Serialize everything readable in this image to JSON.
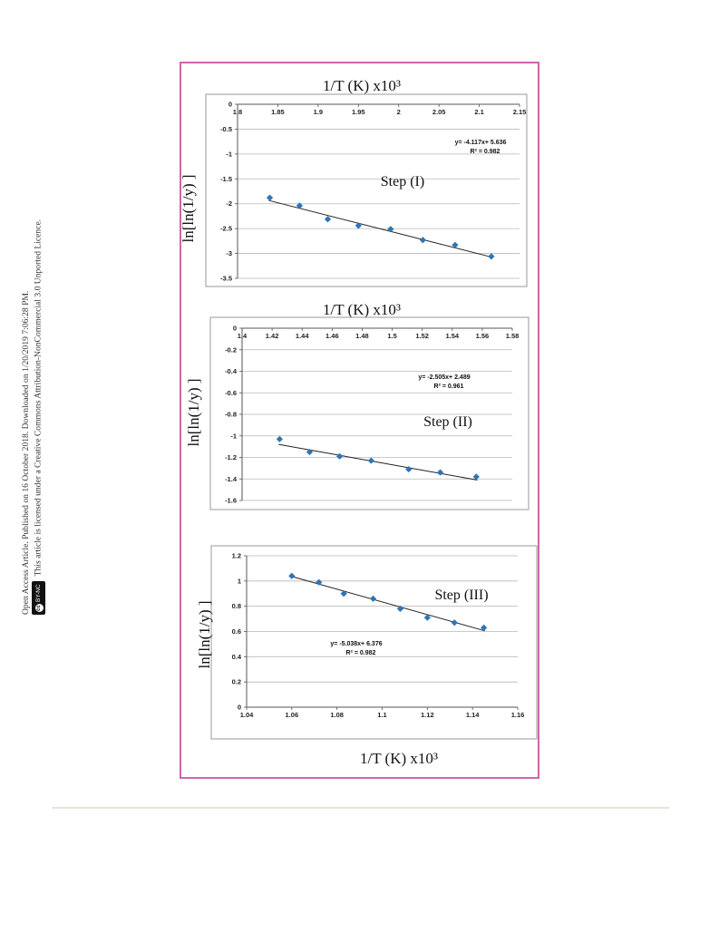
{
  "sidebar": {
    "line1": "Open Access Article. Published on 16 October 2018. Downloaded on 1/20/2019 7:06:28 PM.",
    "line2": "This article is licensed under a Creative Commons Attribution-NonCommercial 3.0 Unported Licence.",
    "badge": "BY-NC",
    "badge_cc": "cc"
  },
  "colors": {
    "frame": "#cc66aa",
    "marker": "#2e75b6",
    "trend": "#222222",
    "grid": "#b8b8b8"
  },
  "chart_data": [
    {
      "type": "scatter",
      "xlabel": "1/T (K) x10³",
      "ylabel": "ln[ln(1/y) ]",
      "annotation": "Step (I)",
      "equation": "y= -4.117x+ 5.636",
      "r2": "R² = 0.982",
      "xlim": [
        1.8,
        2.15
      ],
      "ylim": [
        -3.5,
        0
      ],
      "xticks": [
        "1.8",
        "1.85",
        "1.9",
        "1.95",
        "2",
        "2.05",
        "2.1",
        "2.15"
      ],
      "yticks": [
        "0",
        "-0.5",
        "-1",
        "-1.5",
        "-2",
        "-2.5",
        "-3",
        "-3.5"
      ],
      "x": [
        1.84,
        1.877,
        1.912,
        1.95,
        1.99,
        2.03,
        2.07,
        2.115
      ],
      "y": [
        -1.88,
        -2.04,
        -2.31,
        -2.44,
        -2.51,
        -2.73,
        -2.83,
        -3.06
      ],
      "trend": {
        "slope": -4.117,
        "intercept": 5.636
      },
      "grid": true
    },
    {
      "type": "scatter",
      "xlabel": "1/T (K) x10³",
      "ylabel": "ln[ln(1/y) ]",
      "annotation": "Step (II)",
      "equation": "y= -2.505x+ 2.489",
      "r2": "R² = 0.961",
      "xlim": [
        1.4,
        1.58
      ],
      "ylim": [
        -1.6,
        0
      ],
      "xticks": [
        "1.4",
        "1.42",
        "1.44",
        "1.46",
        "1.48",
        "1.5",
        "1.52",
        "1.54",
        "1.56",
        "1.58"
      ],
      "yticks": [
        "0",
        "-0.2",
        "-0.4",
        "-0.6",
        "-0.8",
        "-1",
        "-1.2",
        "-1.4",
        "-1.6"
      ],
      "x": [
        1.425,
        1.445,
        1.465,
        1.486,
        1.511,
        1.532,
        1.556
      ],
      "y": [
        -1.03,
        -1.15,
        -1.19,
        -1.23,
        -1.31,
        -1.34,
        -1.38
      ],
      "trend": {
        "slope": -2.505,
        "intercept": 2.489
      },
      "grid": true
    },
    {
      "type": "scatter",
      "xlabel": "1/T (K) x10³",
      "ylabel": "ln[ln(1/y) ]",
      "annotation": "Step (III)",
      "equation": "y= -5.038x+ 6.376",
      "r2": "R² = 0.982",
      "xlim": [
        1.04,
        1.16
      ],
      "ylim": [
        0,
        1.2
      ],
      "xticks": [
        "1.04",
        "1.06",
        "1.08",
        "1.1",
        "1.12",
        "1.14",
        "1.16"
      ],
      "yticks": [
        "1.2",
        "1",
        "0.8",
        "0.6",
        "0.4",
        "0.2",
        "0"
      ],
      "x": [
        1.06,
        1.072,
        1.083,
        1.096,
        1.108,
        1.12,
        1.132,
        1.145
      ],
      "y": [
        1.04,
        0.99,
        0.9,
        0.86,
        0.78,
        0.71,
        0.67,
        0.63
      ],
      "trend": {
        "slope": -5.038,
        "intercept": 6.376
      },
      "grid": true
    }
  ]
}
